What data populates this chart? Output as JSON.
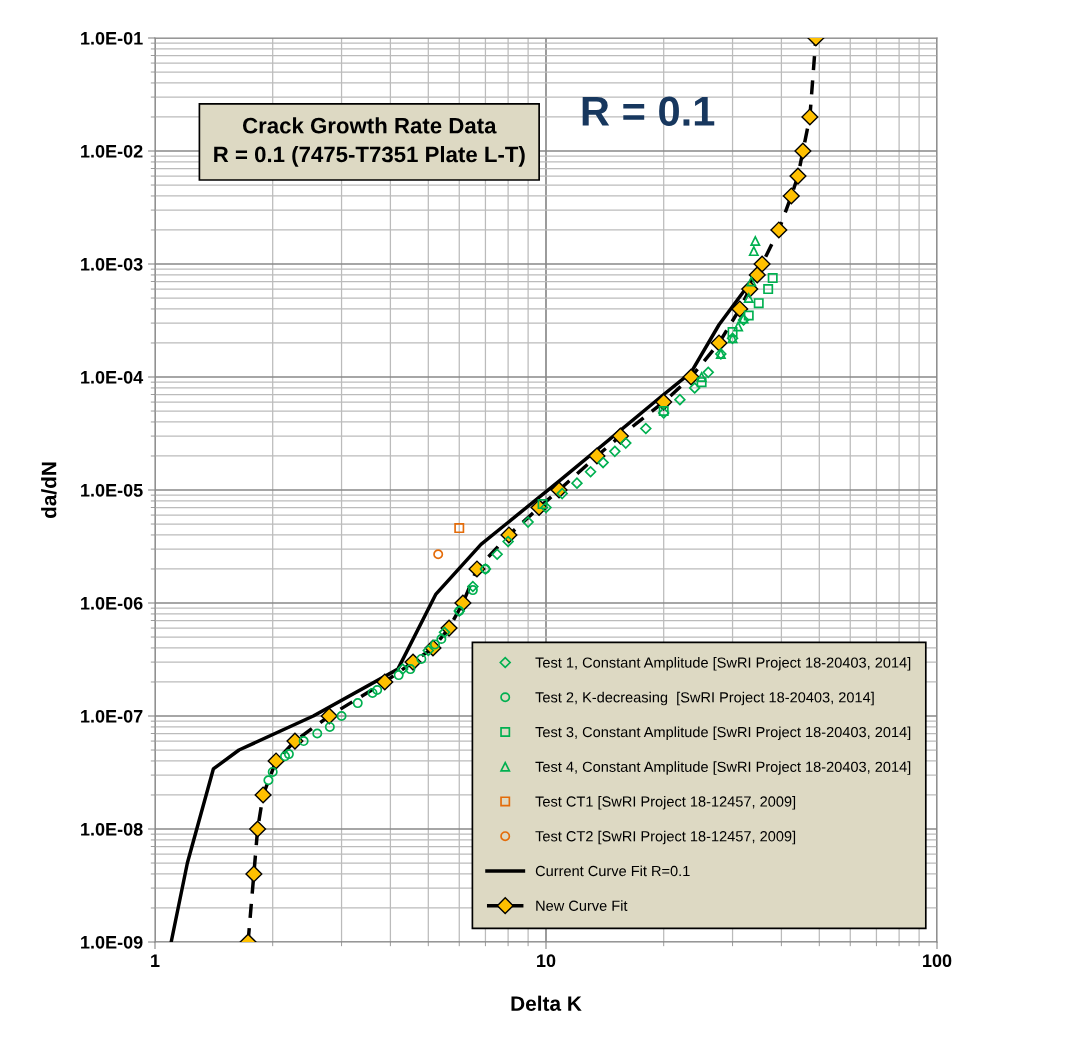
{
  "chart_data": {
    "type": "scatter",
    "title": "Crack Growth Rate Data\nR = 0.1 (7475-T7351 Plate L-T)",
    "annotations": [
      "R = 0.1"
    ],
    "xlabel": "Delta K",
    "ylabel": "da/dN",
    "log": "xy",
    "grid": true,
    "legend": "bottom right",
    "xlim": [
      1,
      100
    ],
    "xticks": [
      1,
      10,
      100
    ],
    "ylim": [
      1e-09,
      0.1
    ],
    "yticks": [
      {
        "value": 1e-09,
        "label": "1.0E-09"
      },
      {
        "value": 1e-08,
        "label": "1.0E-08"
      },
      {
        "value": 1e-07,
        "label": "1.0E-07"
      },
      {
        "value": 1e-06,
        "label": "1.0E-06"
      },
      {
        "value": 1e-05,
        "label": "1.0E-05"
      },
      {
        "value": 0.0001,
        "label": "1.0E-04"
      },
      {
        "value": 0.001,
        "label": "1.0E-03"
      },
      {
        "value": 0.01,
        "label": "1.0E-02"
      },
      {
        "value": 0.1,
        "label": "1.0E-01"
      }
    ],
    "series": [
      {
        "name": "Test 1, Constant Amplitude [SwRI Project 18-20403, 2014]",
        "marker": "diamond",
        "color": "#00b050",
        "x": [
          4.3,
          5,
          5.5,
          6,
          6.5,
          7,
          7.5,
          8,
          9,
          10,
          11,
          12,
          13,
          14,
          15,
          16,
          18,
          20,
          22,
          24,
          26,
          28,
          30,
          32
        ],
        "values": [
          2.6e-07,
          3.8e-07,
          5.5e-07,
          8.5e-07,
          1.4e-06,
          2e-06,
          2.7e-06,
          3.5e-06,
          5.2e-06,
          7e-06,
          9.3e-06,
          1.15e-05,
          1.45e-05,
          1.75e-05,
          2.2e-05,
          2.6e-05,
          3.5e-05,
          4.8e-05,
          6.3e-05,
          8e-05,
          0.00011,
          0.00016,
          0.00022,
          0.00032
        ]
      },
      {
        "name": "Test 2, K-decreasing  [SwRI Project 18-20403, 2014]",
        "marker": "circle",
        "color": "#00b050",
        "x": [
          1.95,
          2.0,
          2.15,
          2.2,
          2.4,
          2.6,
          2.8,
          3.0,
          3.3,
          3.6,
          3.7,
          4.2,
          4.5,
          4.8,
          5.2,
          5.4,
          6.0,
          6.5,
          7.0
        ],
        "values": [
          2.7e-08,
          3.2e-08,
          4.4e-08,
          4.6e-08,
          6e-08,
          7e-08,
          8e-08,
          1e-07,
          1.3e-07,
          1.6e-07,
          1.7e-07,
          2.3e-07,
          2.6e-07,
          3.2e-07,
          4.3e-07,
          4.8e-07,
          8.5e-07,
          1.3e-06,
          2e-06
        ]
      },
      {
        "name": "Test 3, Constant Amplitude [SwRI Project 18-20403, 2014]",
        "marker": "square",
        "color": "#00b050",
        "x": [
          9.8,
          20,
          25,
          30,
          33,
          35,
          37,
          38
        ],
        "values": [
          7.5e-06,
          5e-05,
          9e-05,
          0.00025,
          0.00035,
          0.00045,
          0.0006,
          0.00075
        ]
      },
      {
        "name": "Test 4, Constant Amplitude [SwRI Project 18-20403, 2014]",
        "marker": "triangle",
        "color": "#00b050",
        "x": [
          25,
          28,
          30,
          31,
          32,
          33,
          33.5,
          34,
          34.3
        ],
        "values": [
          0.0001,
          0.00016,
          0.00022,
          0.00028,
          0.00033,
          0.0005,
          0.0007,
          0.0013,
          0.0016
        ]
      },
      {
        "name": "Test CT1 [SwRI Project 18-12457, 2009]",
        "marker": "square",
        "color": "#e46c0a",
        "x": [
          6.0
        ],
        "values": [
          4.6e-06
        ]
      },
      {
        "name": "Test CT2 [SwRI Project 18-12457, 2009]",
        "marker": "circle",
        "color": "#e46c0a",
        "x": [
          5.3
        ],
        "values": [
          2.7e-06
        ]
      },
      {
        "name": "Current Curve Fit R=0.1",
        "type": "line",
        "marker": "none",
        "line_style": "solid",
        "color": "#000000",
        "x": [
          1.1,
          1.21,
          1.41,
          1.64,
          2.54,
          4.18,
          5.23,
          6.82,
          10.8,
          20,
          23.5,
          27.7,
          35.3
        ],
        "values": [
          1e-09,
          5e-09,
          3.4e-08,
          5e-08,
          1e-07,
          2.6e-07,
          1.2e-06,
          3.3e-06,
          1.2e-05,
          7e-05,
          0.00011,
          0.00029,
          0.0009
        ]
      },
      {
        "name": "New Curve Fit",
        "type": "line",
        "marker": "diamond",
        "line_style": "dashed",
        "color": "#ffc000",
        "x": [
          1.73,
          1.79,
          1.83,
          1.89,
          2.04,
          2.28,
          2.79,
          3.87,
          4.57,
          5.14,
          5.65,
          6.13,
          6.66,
          8.04,
          9.6,
          10.8,
          13.5,
          15.5,
          20.0,
          23.5,
          27.7,
          31.3,
          33.2,
          34.7,
          35.7,
          39.4,
          42.4,
          44.1,
          45.4,
          47.3,
          49.0
        ],
        "values": [
          1e-09,
          4e-09,
          1e-08,
          2e-08,
          4e-08,
          6e-08,
          1e-07,
          2e-07,
          3e-07,
          4e-07,
          6e-07,
          1e-06,
          2e-06,
          4e-06,
          7e-06,
          1e-05,
          2e-05,
          3e-05,
          6e-05,
          0.0001,
          0.0002,
          0.0004,
          0.0006,
          0.0008,
          0.001,
          0.002,
          0.004,
          0.006,
          0.01,
          0.02,
          0.1
        ]
      }
    ]
  }
}
